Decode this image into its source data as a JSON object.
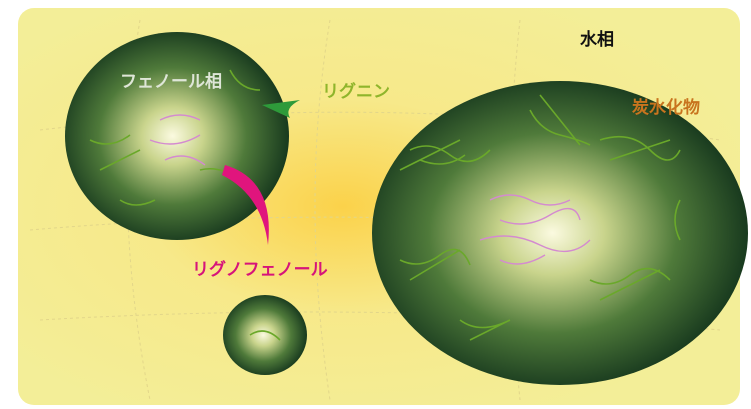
{
  "labels": [
    {
      "text": "水相"
    },
    {
      "text": "フェノール相"
    },
    {
      "text": "リグニン"
    },
    {
      "text": "炭水化物"
    },
    {
      "text": "リグノフェノール"
    }
  ]
}
